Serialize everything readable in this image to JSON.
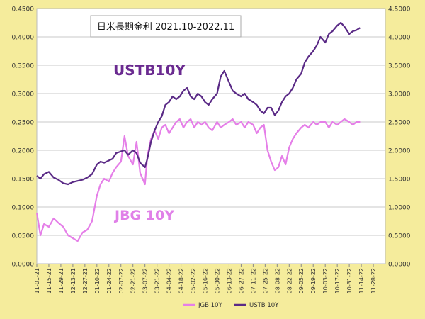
{
  "chart_data": {
    "type": "line",
    "title": "日米長期金利 2021.10-2022.11",
    "annotations": [
      {
        "text": "USTB10Y",
        "color": "#6a2a90"
      },
      {
        "text": "JBG 10Y",
        "color": "#e080e8"
      }
    ],
    "y_left": {
      "min": 0,
      "max": 0.45,
      "ticks": [
        "0.0000",
        "0.0500",
        "0.1000",
        "0.1500",
        "0.2000",
        "0.2500",
        "0.3000",
        "0.3500",
        "0.4000",
        "0.4500"
      ]
    },
    "y_right": {
      "min": 0,
      "max": 4.5,
      "ticks": [
        "0.0000",
        "0.5000",
        "1.0000",
        "1.5000",
        "2.0000",
        "2.5000",
        "3.0000",
        "3.5000",
        "4.0000",
        "4.5000"
      ]
    },
    "x_ticks": [
      "11-01-21",
      "11-15-21",
      "11-29-21",
      "12-13-21",
      "12-27-21",
      "01-10-22",
      "01-24-22",
      "02-07-22",
      "02-21-22",
      "03-07-22",
      "03-21-22",
      "04-04-22",
      "04-18-22",
      "05-02-22",
      "05-16-22",
      "05-30-22",
      "06-13-22",
      "06-27-22",
      "07-11-22",
      "07-25-22",
      "08-08-22",
      "08-22-22",
      "09-05-22",
      "09-19-22",
      "10-03-22",
      "10-17-22",
      "10-31-22",
      "11-14-22",
      "11-28-22"
    ],
    "legend_position": "bottom",
    "grid": true,
    "series": [
      {
        "name": "JGB 10Y",
        "axis": "left",
        "color": "#e57fe8",
        "x": [
          0,
          0.3,
          0.6,
          1,
          1.4,
          1.8,
          2.2,
          2.6,
          3,
          3.4,
          3.8,
          4.2,
          4.6,
          5,
          5.3,
          5.6,
          6,
          6.3,
          6.6,
          7,
          7.3,
          7.6,
          8,
          8.3,
          8.6,
          9,
          9.2,
          9.5,
          9.8,
          10.1,
          10.4,
          10.7,
          11,
          11.3,
          11.6,
          11.9,
          12.2,
          12.5,
          12.8,
          13.1,
          13.4,
          13.7,
          14,
          14.3,
          14.6,
          15,
          15.3,
          15.6,
          16,
          16.3,
          16.6,
          17,
          17.3,
          17.6,
          18,
          18.3,
          18.6,
          18.9,
          19.2,
          19.5,
          19.8,
          20.1,
          20.4,
          20.7,
          21,
          21.3,
          21.6,
          22,
          22.3,
          22.6,
          23,
          23.3,
          23.6,
          24,
          24.3,
          24.6,
          25,
          25.3,
          25.6,
          26,
          26.3,
          26.6,
          26.9
        ],
        "values": [
          0.09,
          0.05,
          0.07,
          0.065,
          0.08,
          0.072,
          0.065,
          0.05,
          0.045,
          0.04,
          0.055,
          0.06,
          0.075,
          0.12,
          0.14,
          0.15,
          0.145,
          0.16,
          0.17,
          0.18,
          0.225,
          0.19,
          0.175,
          0.215,
          0.16,
          0.14,
          0.19,
          0.22,
          0.235,
          0.22,
          0.24,
          0.245,
          0.23,
          0.24,
          0.25,
          0.255,
          0.24,
          0.25,
          0.255,
          0.24,
          0.25,
          0.245,
          0.25,
          0.24,
          0.235,
          0.25,
          0.24,
          0.245,
          0.25,
          0.255,
          0.245,
          0.25,
          0.24,
          0.25,
          0.245,
          0.23,
          0.24,
          0.245,
          0.2,
          0.18,
          0.165,
          0.17,
          0.19,
          0.175,
          0.205,
          0.22,
          0.23,
          0.24,
          0.245,
          0.24,
          0.25,
          0.245,
          0.25,
          0.25,
          0.24,
          0.25,
          0.245,
          0.25,
          0.255,
          0.25,
          0.245,
          0.25,
          0.25
        ]
      },
      {
        "name": "USTB 10Y",
        "axis": "right",
        "color": "#5a2a86",
        "x": [
          0,
          0.3,
          0.6,
          1,
          1.4,
          1.8,
          2.2,
          2.6,
          3,
          3.4,
          3.8,
          4.2,
          4.6,
          5,
          5.3,
          5.6,
          6,
          6.3,
          6.6,
          7,
          7.3,
          7.6,
          8,
          8.3,
          8.6,
          9,
          9.2,
          9.5,
          9.8,
          10.1,
          10.4,
          10.7,
          11,
          11.3,
          11.6,
          11.9,
          12.2,
          12.5,
          12.8,
          13.1,
          13.4,
          13.7,
          14,
          14.3,
          14.6,
          15,
          15.3,
          15.6,
          16,
          16.3,
          16.6,
          17,
          17.3,
          17.6,
          18,
          18.3,
          18.6,
          18.9,
          19.2,
          19.5,
          19.8,
          20.1,
          20.4,
          20.7,
          21,
          21.3,
          21.6,
          22,
          22.3,
          22.6,
          23,
          23.3,
          23.6,
          24,
          24.3,
          24.6,
          25,
          25.3,
          25.6,
          26,
          26.3,
          26.6,
          26.9
        ],
        "values": [
          1.55,
          1.5,
          1.58,
          1.62,
          1.52,
          1.48,
          1.42,
          1.4,
          1.44,
          1.46,
          1.48,
          1.52,
          1.58,
          1.75,
          1.8,
          1.78,
          1.82,
          1.85,
          1.95,
          1.98,
          2.0,
          1.92,
          2.0,
          1.95,
          1.78,
          1.7,
          1.85,
          2.15,
          2.35,
          2.5,
          2.6,
          2.8,
          2.85,
          2.95,
          2.9,
          2.95,
          3.05,
          3.1,
          2.95,
          2.9,
          3.0,
          2.95,
          2.85,
          2.8,
          2.9,
          3.0,
          3.3,
          3.4,
          3.2,
          3.05,
          3.0,
          2.95,
          3.0,
          2.9,
          2.85,
          2.8,
          2.7,
          2.65,
          2.75,
          2.75,
          2.62,
          2.7,
          2.85,
          2.95,
          3.0,
          3.1,
          3.25,
          3.35,
          3.55,
          3.65,
          3.75,
          3.85,
          4.0,
          3.9,
          4.05,
          4.1,
          4.2,
          4.25,
          4.18,
          4.05,
          4.1,
          4.12,
          4.16
        ]
      }
    ]
  }
}
